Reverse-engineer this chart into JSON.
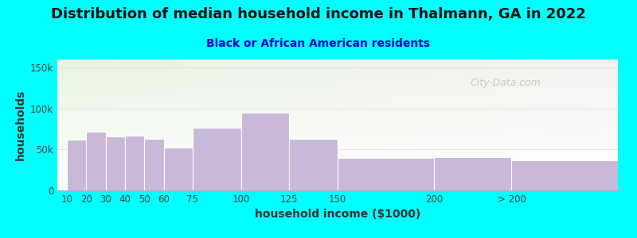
{
  "title": "Distribution of median household income in Thalmann, GA in 2022",
  "subtitle": "Black or African American residents",
  "xlabel": "household income ($1000)",
  "ylabel": "households",
  "background_color": "#00FFFF",
  "plot_bg_gradient_top": "#e8f5e0",
  "plot_bg_gradient_right": "#f0eeee",
  "plot_bg_bottom": "#ffffff",
  "bar_color": "#c9b8d8",
  "bar_edge_color": "#ffffff",
  "categories": [
    "10",
    "20",
    "30",
    "40",
    "50",
    "60",
    "75",
    "100",
    "125",
    "150",
    "200",
    "> 200"
  ],
  "values": [
    62000,
    72000,
    66000,
    67000,
    63000,
    52000,
    77000,
    95000,
    63000,
    40000,
    41000,
    37000
  ],
  "x_positions": [
    10,
    20,
    30,
    40,
    50,
    60,
    75,
    100,
    125,
    150,
    200,
    240
  ],
  "widths": [
    10,
    10,
    10,
    10,
    10,
    15,
    25,
    25,
    25,
    50,
    40,
    55
  ],
  "xlim": [
    5,
    295
  ],
  "ylim": [
    0,
    160000
  ],
  "yticks": [
    0,
    50000,
    100000,
    150000
  ],
  "ytick_labels": [
    "0",
    "50k",
    "100k",
    "150k"
  ],
  "title_fontsize": 13,
  "subtitle_fontsize": 10,
  "axis_label_fontsize": 10,
  "tick_fontsize": 8.5,
  "watermark_text": "City-Data.com",
  "title_color": "#111111",
  "subtitle_color": "#0000cc",
  "grid_color": "#dddddd",
  "tick_color": "#444444"
}
